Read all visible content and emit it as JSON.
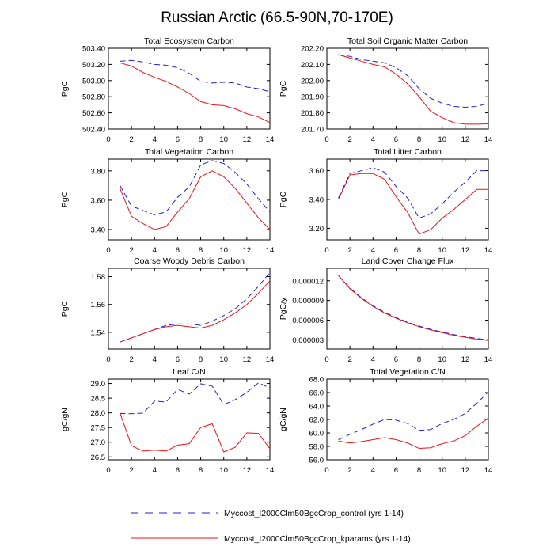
{
  "figure": {
    "title": "Russian Arctic (66.5-90N,70-170E)",
    "colors": {
      "control": "#1f1fd9",
      "kparams": "#e8131c",
      "axis": "#000000"
    }
  },
  "legend": [
    {
      "label": "Myccost_I2000Clm50BgcCrop_control (yrs 1-14)",
      "color": "#1f1fd9",
      "style": "dashed"
    },
    {
      "label": "Myccost_I2000Clm50BgcCrop_kparams (yrs 1-14)",
      "color": "#e8131c",
      "style": "solid"
    }
  ],
  "chart_data": [
    {
      "type": "line",
      "title": "Total Ecosystem Carbon",
      "xlabel": "",
      "ylabel": "PgC",
      "xlim": [
        0,
        14
      ],
      "ylim": [
        502.4,
        503.4
      ],
      "xticks": [
        0,
        2,
        4,
        6,
        8,
        10,
        12,
        14
      ],
      "yticks": [
        502.4,
        502.6,
        502.8,
        503.0,
        503.2,
        503.4
      ],
      "ytick_labels": [
        "502.40",
        "502.60",
        "502.80",
        "503.00",
        "503.20",
        "503.40"
      ],
      "x": [
        1,
        2,
        3,
        4,
        5,
        6,
        7,
        8,
        9,
        10,
        11,
        12,
        13,
        14
      ],
      "series": [
        {
          "values": [
            503.24,
            503.25,
            503.23,
            503.2,
            503.19,
            503.16,
            503.09,
            502.99,
            502.97,
            502.98,
            502.97,
            502.92,
            502.9,
            502.86
          ]
        },
        {
          "values": [
            503.22,
            503.18,
            503.1,
            503.04,
            502.99,
            502.92,
            502.84,
            502.74,
            502.7,
            502.69,
            502.65,
            502.59,
            502.55,
            502.48
          ]
        }
      ]
    },
    {
      "type": "line",
      "title": "Total Soil Organic Matter Carbon",
      "xlabel": "",
      "ylabel": "PgC",
      "xlim": [
        0,
        14
      ],
      "ylim": [
        201.7,
        202.2
      ],
      "xticks": [
        0,
        2,
        4,
        6,
        8,
        10,
        12,
        14
      ],
      "yticks": [
        201.7,
        201.8,
        201.9,
        202.0,
        202.1,
        202.2
      ],
      "ytick_labels": [
        "201.70",
        "201.80",
        "201.90",
        "202.00",
        "202.10",
        "202.20"
      ],
      "x": [
        1,
        2,
        3,
        4,
        5,
        6,
        7,
        8,
        9,
        10,
        11,
        12,
        13,
        14
      ],
      "series": [
        {
          "values": [
            202.16,
            202.15,
            202.13,
            202.12,
            202.11,
            202.08,
            202.03,
            201.95,
            201.89,
            201.86,
            201.84,
            201.835,
            201.84,
            201.86
          ]
        },
        {
          "values": [
            202.16,
            202.14,
            202.12,
            202.1,
            202.085,
            202.04,
            201.98,
            201.9,
            201.81,
            201.77,
            201.74,
            201.73,
            201.73,
            201.732
          ]
        }
      ]
    },
    {
      "type": "line",
      "title": "Total Vegetation Carbon",
      "xlabel": "",
      "ylabel": "PgC",
      "xlim": [
        0,
        14
      ],
      "ylim": [
        3.33,
        3.88
      ],
      "xticks": [
        0,
        2,
        4,
        6,
        8,
        10,
        12,
        14
      ],
      "yticks": [
        3.4,
        3.6,
        3.8
      ],
      "ytick_labels": [
        "3.40",
        "3.60",
        "3.80"
      ],
      "x": [
        1,
        2,
        3,
        4,
        5,
        6,
        7,
        8,
        9,
        10,
        11,
        12,
        13,
        14
      ],
      "series": [
        {
          "values": [
            3.7,
            3.56,
            3.53,
            3.5,
            3.52,
            3.62,
            3.69,
            3.84,
            3.87,
            3.85,
            3.79,
            3.71,
            3.61,
            3.52
          ]
        },
        {
          "values": [
            3.68,
            3.49,
            3.44,
            3.4,
            3.42,
            3.52,
            3.61,
            3.76,
            3.8,
            3.76,
            3.68,
            3.58,
            3.48,
            3.4
          ]
        }
      ]
    },
    {
      "type": "line",
      "title": "Total Litter Carbon",
      "xlabel": "",
      "ylabel": "PgC",
      "xlim": [
        0,
        14
      ],
      "ylim": [
        3.12,
        3.68
      ],
      "xticks": [
        0,
        2,
        4,
        6,
        8,
        10,
        12,
        14
      ],
      "yticks": [
        3.2,
        3.4,
        3.6
      ],
      "ytick_labels": [
        "3.20",
        "3.40",
        "3.60"
      ],
      "x": [
        1,
        2,
        3,
        4,
        5,
        6,
        7,
        8,
        9,
        10,
        11,
        12,
        13,
        14
      ],
      "series": [
        {
          "values": [
            3.41,
            3.58,
            3.6,
            3.62,
            3.59,
            3.49,
            3.41,
            3.27,
            3.3,
            3.37,
            3.45,
            3.52,
            3.6,
            3.6
          ]
        },
        {
          "values": [
            3.4,
            3.57,
            3.58,
            3.58,
            3.54,
            3.42,
            3.31,
            3.16,
            3.19,
            3.27,
            3.33,
            3.4,
            3.47,
            3.47
          ]
        }
      ]
    },
    {
      "type": "line",
      "title": "Coarse Woody Debris Carbon",
      "xlabel": "",
      "ylabel": "PgC",
      "xlim": [
        0,
        14
      ],
      "ylim": [
        1.528,
        1.586
      ],
      "xticks": [
        0,
        2,
        4,
        6,
        8,
        10,
        12,
        14
      ],
      "yticks": [
        1.54,
        1.56,
        1.58
      ],
      "ytick_labels": [
        "1.54",
        "1.56",
        "1.58"
      ],
      "x": [
        1,
        2,
        3,
        4,
        5,
        6,
        7,
        8,
        9,
        10,
        11,
        12,
        13,
        14
      ],
      "series": [
        {
          "values": [
            1.533,
            1.536,
            1.539,
            1.542,
            1.545,
            1.546,
            1.546,
            1.545,
            1.548,
            1.552,
            1.557,
            1.564,
            1.573,
            1.583
          ]
        },
        {
          "values": [
            1.533,
            1.536,
            1.539,
            1.542,
            1.544,
            1.545,
            1.544,
            1.543,
            1.545,
            1.549,
            1.554,
            1.56,
            1.568,
            1.577
          ]
        }
      ]
    },
    {
      "type": "line",
      "title": "Land Cover Change Flux",
      "xlabel": "",
      "ylabel": "PgC/y",
      "xlim": [
        0,
        14
      ],
      "ylim": [
        1.6e-06,
        1.39e-05
      ],
      "xticks": [
        0,
        2,
        4,
        6,
        8,
        10,
        12,
        14
      ],
      "yticks": [
        3e-06,
        6e-06,
        9e-06,
        1.2e-05
      ],
      "ytick_labels": [
        "0.000003",
        "0.000006",
        "0.000009",
        "0.000012"
      ],
      "x": [
        1,
        2,
        3,
        4,
        5,
        6,
        7,
        8,
        9,
        10,
        11,
        12,
        13,
        14
      ],
      "series": [
        {
          "values": [
            1.28e-05,
            1.09e-05,
            9.4e-06,
            8.2e-06,
            7.2e-06,
            6.4e-06,
            5.7e-06,
            5.1e-06,
            4.6e-06,
            4.2e-06,
            3.8e-06,
            3.5e-06,
            3.2e-06,
            3e-06
          ]
        },
        {
          "values": [
            1.28e-05,
            1.08e-05,
            9.3e-06,
            8.1e-06,
            7.1e-06,
            6.3e-06,
            5.6e-06,
            5e-06,
            4.5e-06,
            4.1e-06,
            3.7e-06,
            3.4e-06,
            3.1e-06,
            2.9e-06
          ]
        }
      ]
    },
    {
      "type": "line",
      "title": "Leaf C/N",
      "xlabel": "",
      "ylabel": "gC/gN",
      "xlim": [
        0,
        14
      ],
      "ylim": [
        26.4,
        29.15
      ],
      "xticks": [
        0,
        2,
        4,
        6,
        8,
        10,
        12,
        14
      ],
      "yticks": [
        26.5,
        27.0,
        27.5,
        28.0,
        28.5,
        29.0
      ],
      "ytick_labels": [
        "26.5",
        "27.0",
        "27.5",
        "28.0",
        "28.5",
        "29.0"
      ],
      "x": [
        1,
        2,
        3,
        4,
        5,
        6,
        7,
        8,
        9,
        10,
        11,
        12,
        13,
        14
      ],
      "series": [
        {
          "values": [
            27.98,
            27.97,
            27.99,
            28.4,
            28.37,
            28.8,
            28.64,
            28.99,
            28.91,
            28.28,
            28.45,
            28.7,
            29.02,
            28.85
          ]
        },
        {
          "values": [
            28.0,
            26.88,
            26.7,
            26.73,
            26.7,
            26.9,
            26.95,
            27.5,
            27.63,
            26.67,
            26.83,
            27.32,
            27.3,
            26.78
          ]
        }
      ]
    },
    {
      "type": "line",
      "title": "Total Vegetation C/N",
      "xlabel": "",
      "ylabel": "gC/gN",
      "xlim": [
        0,
        14
      ],
      "ylim": [
        56.0,
        68.0
      ],
      "xticks": [
        0,
        2,
        4,
        6,
        8,
        10,
        12,
        14
      ],
      "yticks": [
        56.0,
        58.0,
        60.0,
        62.0,
        64.0,
        66.0,
        68.0
      ],
      "ytick_labels": [
        "56.0",
        "58.0",
        "60.0",
        "62.0",
        "64.0",
        "66.0",
        "68.0"
      ],
      "x": [
        1,
        2,
        3,
        4,
        5,
        6,
        7,
        8,
        9,
        10,
        11,
        12,
        13,
        14
      ],
      "series": [
        {
          "values": [
            59.0,
            59.8,
            60.5,
            61.3,
            62.0,
            61.9,
            61.4,
            60.4,
            60.5,
            61.4,
            62.0,
            62.9,
            64.4,
            66.1
          ]
        },
        {
          "values": [
            58.8,
            58.5,
            58.7,
            59.0,
            59.3,
            59.0,
            58.5,
            57.7,
            57.8,
            58.4,
            58.8,
            59.6,
            61.0,
            62.2
          ]
        }
      ]
    }
  ]
}
